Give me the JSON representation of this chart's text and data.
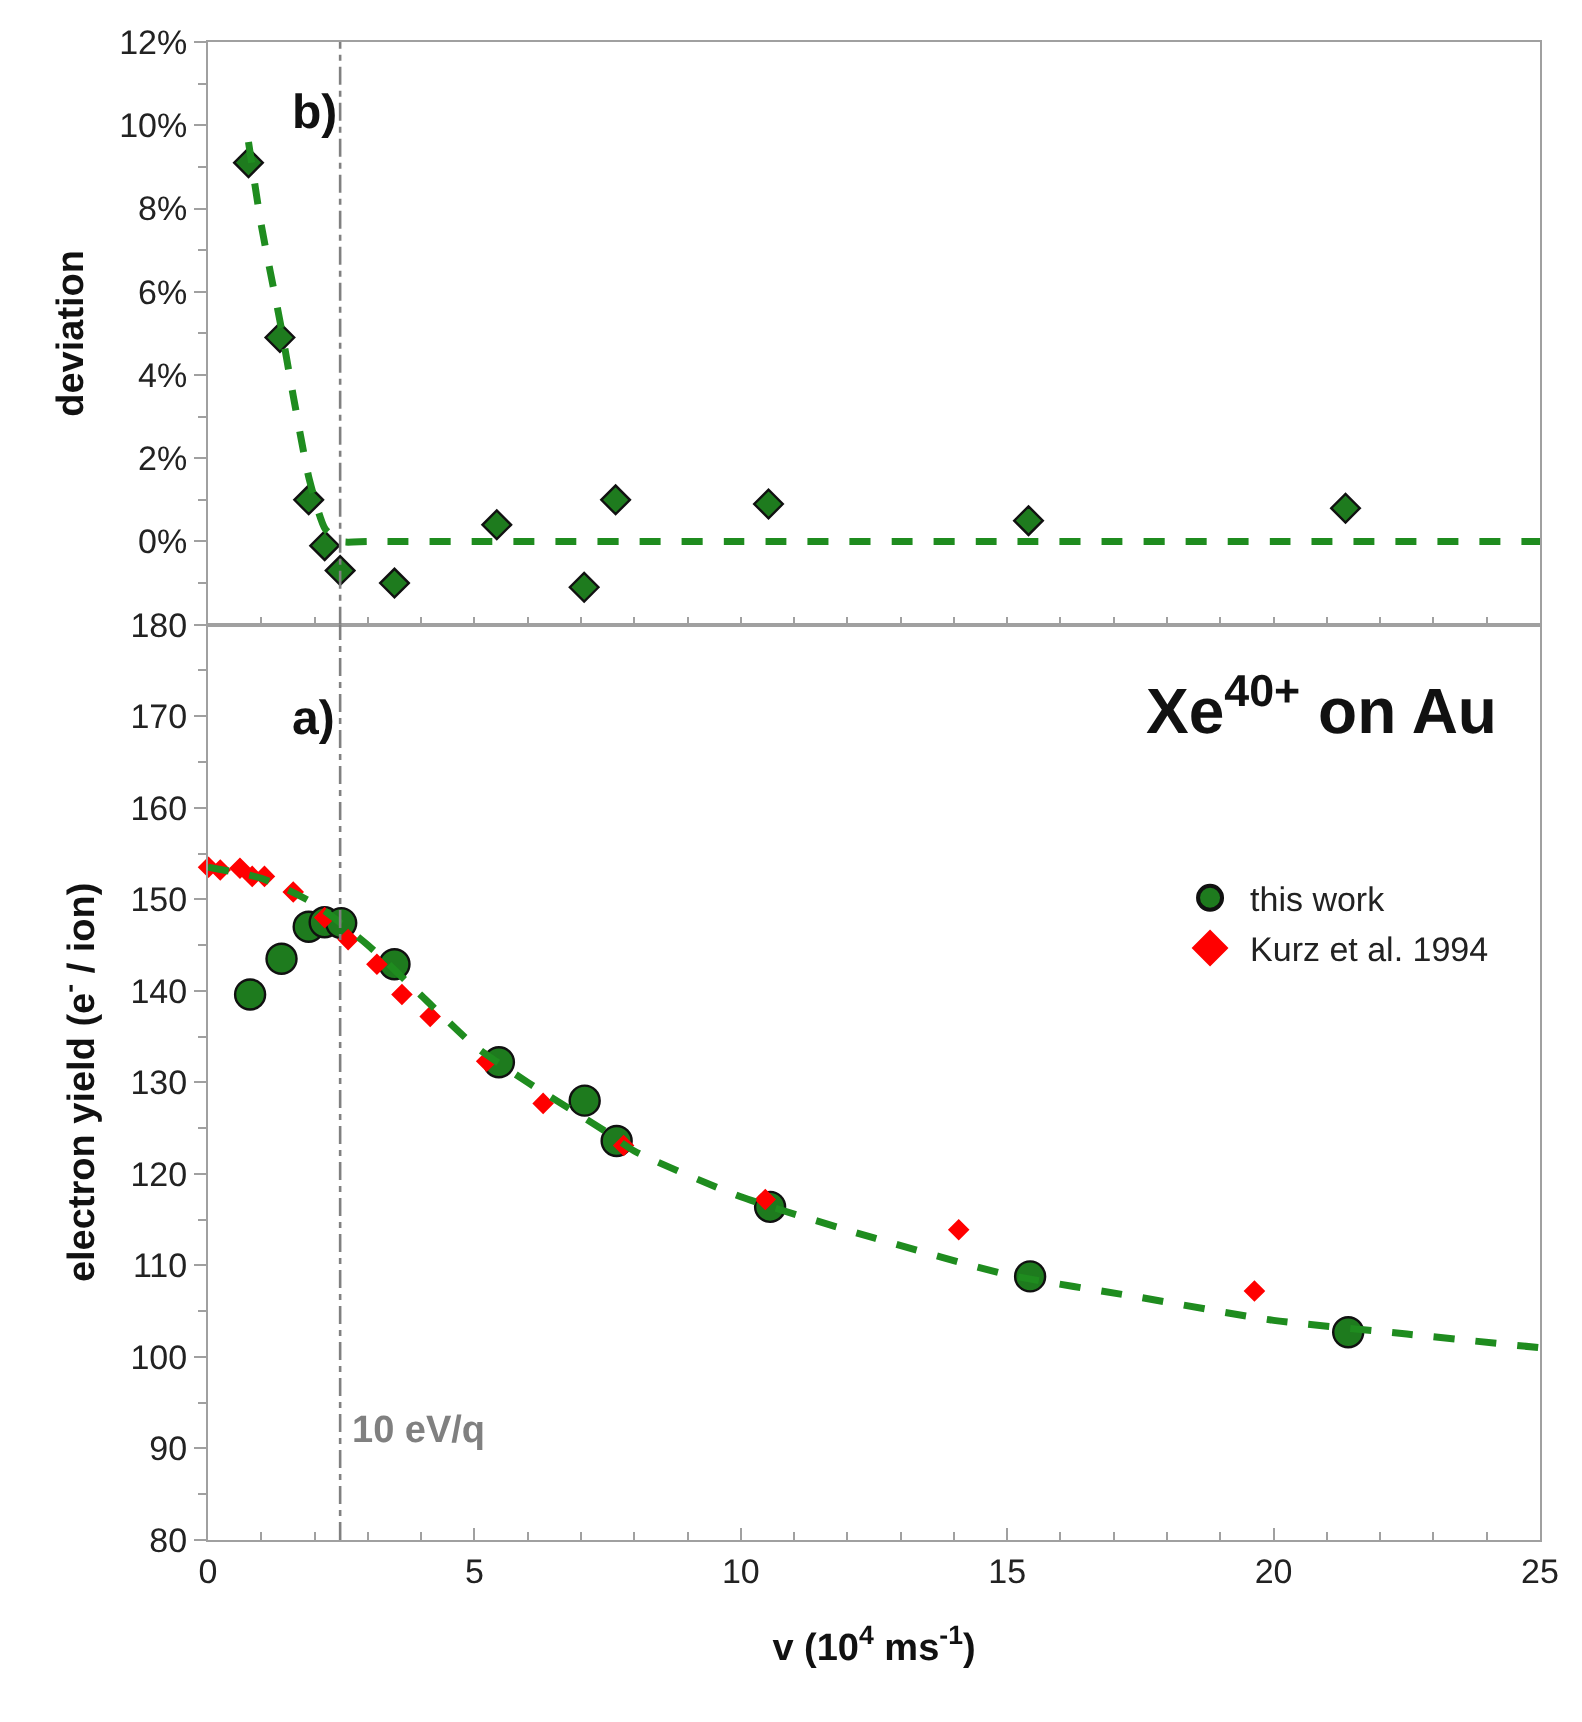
{
  "chart_data": [
    {
      "type": "scatter",
      "ylabel": "deviation",
      "annotations": [
        "b)"
      ],
      "xlim": [
        0,
        25
      ],
      "ylim": [
        -2,
        12
      ],
      "yticks": [
        {
          "value": 0,
          "label": "0%"
        },
        {
          "value": 2,
          "label": "2%"
        },
        {
          "value": 4,
          "label": "4%"
        },
        {
          "value": 6,
          "label": "6%"
        },
        {
          "value": 8,
          "label": "8%"
        },
        {
          "value": 10,
          "label": "10%"
        },
        {
          "value": 12,
          "label": "12%"
        }
      ],
      "tick_labels": "y",
      "grid": false,
      "series": [
        {
          "type": "line",
          "color": "#1f8c1f",
          "line_style": "dashed",
          "marker": "none",
          "x": [
            0.76,
            1.0,
            1.35,
            1.6,
            1.9,
            2.2,
            2.5,
            3.0,
            5,
            10,
            15,
            20,
            25
          ],
          "values": [
            9.6,
            7.6,
            5.3,
            3.5,
            1.5,
            0.3,
            0,
            0,
            0,
            0,
            0,
            0,
            0
          ]
        },
        {
          "color": "#1e7b1e",
          "marker": "diamond",
          "x": [
            0.76,
            1.35,
            1.89,
            2.19,
            2.48,
            3.5,
            5.42,
            7.06,
            7.65,
            10.52,
            15.4,
            21.35
          ],
          "values": [
            9.1,
            4.9,
            1.0,
            -0.1,
            -0.7,
            -1.0,
            0.4,
            -1.1,
            1.0,
            0.9,
            0.5,
            0.8
          ]
        }
      ],
      "ref_lines": [
        {
          "axis": "x",
          "value": 2.48,
          "color": "#808080",
          "line_style": "dashdot"
        }
      ]
    },
    {
      "type": "scatter",
      "title": "Xe$^{40+}$ on Au",
      "xlabel": "v (10$^{4}$ ms$^{-1}$)",
      "ylabel": "electron yield (e$^{-}$ / ion)",
      "annotations": [
        "a)"
      ],
      "xlim": [
        0,
        25
      ],
      "xticks": [
        0,
        5,
        10,
        15,
        20,
        25
      ],
      "ylim": [
        80,
        180
      ],
      "yticks": [
        80,
        90,
        100,
        110,
        120,
        130,
        140,
        150,
        160,
        170,
        180
      ],
      "grid": false,
      "legend": "right",
      "series": [
        {
          "type": "line",
          "color": "#1f8c1f",
          "line_style": "dashed",
          "marker": "none",
          "x": [
            0,
            1,
            2,
            3,
            4,
            5,
            6,
            7.5,
            8,
            10,
            12.5,
            15,
            17.5,
            20,
            22.5,
            25
          ],
          "values": [
            153.5,
            152.3,
            149.5,
            145,
            139.5,
            134,
            130,
            124.5,
            122.5,
            117.5,
            113,
            109,
            106.5,
            104,
            102.5,
            101
          ]
        },
        {
          "name": "this work",
          "color": "#1e7b1e",
          "marker": "circle",
          "x": [
            0.79,
            1.38,
            1.89,
            2.19,
            2.5,
            3.5,
            5.46,
            7.07,
            7.67,
            10.55,
            15.43,
            21.4
          ],
          "values": [
            139.6,
            143.5,
            147.0,
            147.5,
            147.4,
            142.9,
            132.2,
            128.0,
            123.6,
            116.4,
            108.8,
            102.7
          ]
        },
        {
          "name": "Kurz et al. 1994",
          "color": "#ff0000",
          "marker": "diamond",
          "x": [
            0.01,
            0.23,
            0.6,
            0.83,
            1.06,
            1.6,
            2.19,
            2.63,
            3.17,
            3.64,
            4.17,
            5.23,
            6.29,
            7.8,
            10.46,
            14.09,
            19.64
          ],
          "values": [
            153.5,
            153.2,
            153.4,
            152.5,
            152.5,
            150.8,
            148.0,
            145.6,
            142.9,
            139.6,
            137.2,
            132.3,
            127.7,
            123.1,
            117.2,
            113.9,
            107.2
          ]
        }
      ],
      "ref_lines": [
        {
          "axis": "x",
          "value": 2.48,
          "label": "10 eV/q",
          "color": "#808080",
          "line_style": "dashdot"
        }
      ]
    }
  ]
}
